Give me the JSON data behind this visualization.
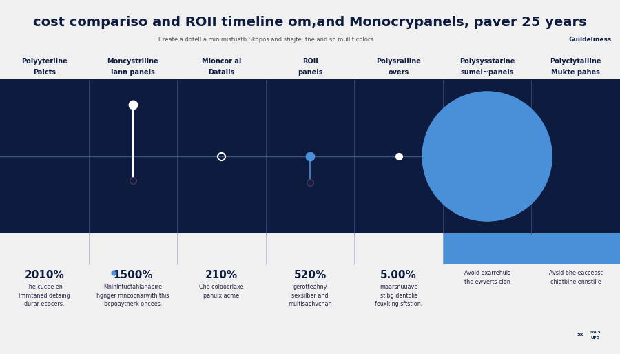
{
  "title": "cost compariso and ROII timeline om,and Monocrypanels, paver 25 years",
  "subtitle": "Create a dotell a minimistuatb Skopos and stiajte, tne and so mullit colors.",
  "guideline_label": "Guildeliness",
  "bg_color": "#0d1b3e",
  "light_blue": "#4a90d9",
  "white": "#ffffff",
  "header_bg": "#f0f0f0",
  "columns": [
    {
      "header_line1": "Polyyterline",
      "header_line2": "Paicts",
      "pct": "2010%",
      "desc": "The cucee en\nlmmtaned detaing\ndurar ecocers.",
      "marker": "none"
    },
    {
      "header_line1": "Moncystriline",
      "header_line2": "lann panels",
      "pct": "1500%",
      "desc": "Mnlnlntuctahlanapire\nhgnger mncocnarwith this\nbcpoaytnerk oncees.",
      "marker": "white_stem_up",
      "has_blue_dot_label": true
    },
    {
      "header_line1": "Mloncor al",
      "header_line2": "Datalls",
      "pct": "210%",
      "desc": "Che coloocrlaxe\npanulx acme",
      "marker": "white_outline"
    },
    {
      "header_line1": "ROII",
      "header_line2": "panels",
      "pct": "520%",
      "desc": "gerotteahny\nsexsilber and\nmultisachvchan",
      "marker": "blue_stem_down"
    },
    {
      "header_line1": "Polysralline",
      "header_line2": "overs",
      "pct": "5.00%",
      "desc": "maarsnuuave\nstlbg dentolis\nfeuxking sftstion,",
      "marker": "white_small"
    },
    {
      "header_line1": "Polysysstarine",
      "header_line2": "sumel~panels",
      "pct": null,
      "desc": "Avoid exarrehuis\nthe ewverts cion",
      "marker": "big_blue_circle"
    },
    {
      "header_line1": "Polyclytailine",
      "header_line2": "Mukte pahes",
      "pct": null,
      "desc": "Avsid bhe eacceast\nchiatbine ennstille",
      "marker": "none"
    }
  ],
  "col_divider_color": "#1e2f5e",
  "timeline_line_color": "#4a6090",
  "bottom_band_color": "#4a90d9",
  "title_fontsize": 14,
  "header_fontsize": 7,
  "pct_fontsize": 11,
  "desc_fontsize": 5.8
}
